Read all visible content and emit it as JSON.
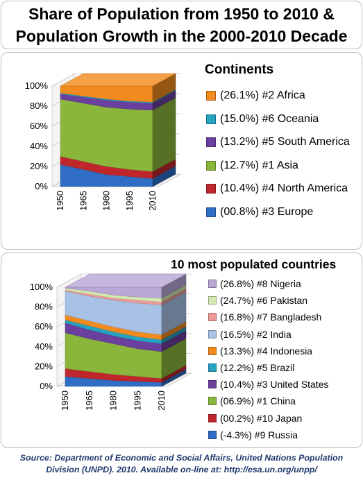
{
  "title": {
    "line1": "Share of Population from 1950 to 2010 &",
    "line2": "Population Growth in the 2000-2010 Decade"
  },
  "source": {
    "line1": "Source: Department of Economic and Social Affairs, United Nations Population",
    "line2": "Division (UNPD). 2010. Available on-line at: http://esa.un.org/unpp/"
  },
  "chart_data": [
    {
      "type": "area",
      "stacked": true,
      "style": "3d-stacked-area",
      "legend_title": "Continents",
      "x": [
        "1950",
        "1965",
        "1980",
        "1995",
        "2010"
      ],
      "y_ticks": [
        "0%",
        "20%",
        "40%",
        "60%",
        "80%",
        "100%"
      ],
      "ylim": [
        0,
        100
      ],
      "grid": true,
      "legend_position": "right",
      "series": [
        {
          "name": "Europe",
          "legend": "(00.8%) #3 Europe",
          "color": "#2f6ec4",
          "values": [
            22,
            17,
            12,
            10,
            8
          ]
        },
        {
          "name": "North America",
          "legend": "(10.4%) #4 North America",
          "color": "#c0272d",
          "values": [
            8,
            8,
            8,
            7,
            7
          ]
        },
        {
          "name": "Asia",
          "legend": "(12.7%) #1 Asia",
          "color": "#8ab63c",
          "values": [
            57,
            58,
            59,
            60,
            61
          ]
        },
        {
          "name": "South America",
          "legend": "(13.2%) #5 South America",
          "color": "#6a3f9e",
          "values": [
            5,
            6,
            7,
            7,
            7
          ]
        },
        {
          "name": "Oceania",
          "legend": "(15.0%) #6 Oceania",
          "color": "#27a3c2",
          "values": [
            1,
            1,
            1,
            1,
            1
          ]
        },
        {
          "name": "Africa",
          "legend": "(26.1%) #2 Africa",
          "color": "#f28b1f",
          "values": [
            7,
            10,
            13,
            15,
            16
          ]
        }
      ]
    },
    {
      "type": "area",
      "stacked": true,
      "style": "3d-stacked-area",
      "legend_title": "10 most populated countries",
      "x": [
        "1950",
        "1965",
        "1980",
        "1995",
        "2010"
      ],
      "y_ticks": [
        "0%",
        "20%",
        "40%",
        "60%",
        "80%",
        "100%"
      ],
      "ylim": [
        0,
        100
      ],
      "grid": true,
      "legend_position": "right",
      "series": [
        {
          "name": "Russia",
          "legend": "(-4.3%) #9 Russia",
          "color": "#2f6ec4",
          "values": [
            10,
            8,
            6,
            5,
            4
          ]
        },
        {
          "name": "Japan",
          "legend": "(00.2%) #10 Japan",
          "color": "#c0272d",
          "values": [
            8,
            7,
            6,
            5,
            4
          ]
        },
        {
          "name": "China",
          "legend": "(06.9%) #1 China",
          "color": "#8ab63c",
          "values": [
            36,
            33,
            31,
            28,
            27
          ]
        },
        {
          "name": "United States",
          "legend": "(10.4%) #3 United States",
          "color": "#6a3f9e",
          "values": [
            10,
            9,
            8,
            8,
            8
          ]
        },
        {
          "name": "Brazil",
          "legend": "(12.2%) #5 Brazil",
          "color": "#27a3c2",
          "values": [
            3,
            4,
            4,
            4,
            4
          ]
        },
        {
          "name": "Indonesia",
          "legend": "(13.3%) #4 Indonesia",
          "color": "#f28b1f",
          "values": [
            5,
            5,
            5,
            5,
            5
          ]
        },
        {
          "name": "India",
          "legend": "(16.5%) #2 India",
          "color": "#a7c2e5",
          "values": [
            24,
            25,
            27,
            29,
            30
          ]
        },
        {
          "name": "Bangladesh",
          "legend": "(16.8%) #7 Bangladesh",
          "color": "#ef9a9a",
          "values": [
            1,
            2,
            2,
            3,
            3
          ]
        },
        {
          "name": "Pakistan",
          "legend": "(24.7%) #6 Pakistan",
          "color": "#d4e8b0",
          "values": [
            2,
            3,
            3,
            3,
            4
          ]
        },
        {
          "name": "Nigeria",
          "legend": "(26.8%) #8 Nigeria",
          "color": "#b9a7d6",
          "values": [
            1,
            4,
            8,
            10,
            11
          ]
        }
      ]
    }
  ]
}
